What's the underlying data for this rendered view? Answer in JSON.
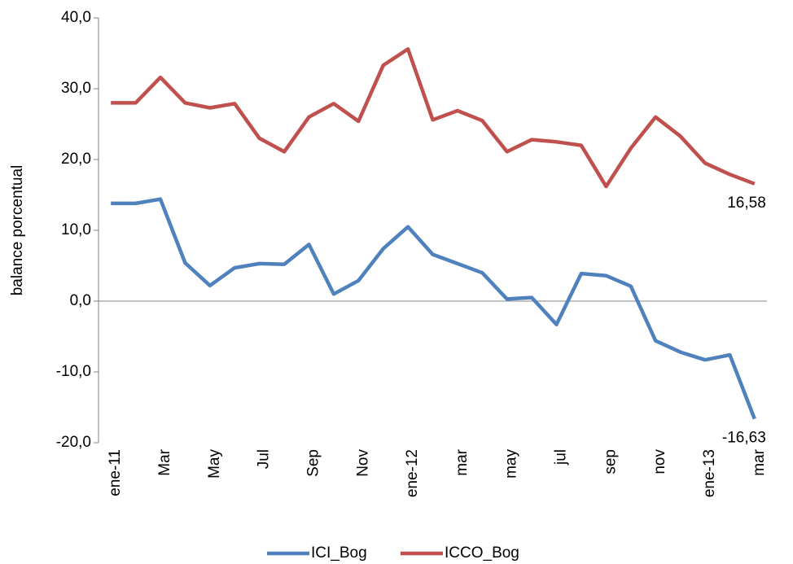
{
  "chart_data": {
    "type": "line",
    "y_label": "balance porcentual",
    "categories": [
      "ene-11",
      null,
      "Mar",
      null,
      "May",
      null,
      "Jul",
      null,
      "Sep",
      null,
      "Nov",
      null,
      "ene-12",
      null,
      "mar",
      null,
      "may",
      null,
      "jul",
      null,
      "sep",
      null,
      "nov",
      null,
      "ene-13",
      null,
      "mar"
    ],
    "series": [
      {
        "name": "ICI_Bog",
        "color": "#4f81bd",
        "values": [
          13.8,
          13.8,
          14.4,
          5.4,
          2.2,
          4.7,
          5.3,
          5.2,
          8.0,
          1.0,
          2.9,
          7.4,
          10.5,
          6.6,
          5.3,
          4.0,
          0.3,
          0.5,
          -3.3,
          3.9,
          3.6,
          2.1,
          -5.6,
          -7.2,
          -8.3,
          -7.6,
          -16.63
        ],
        "value_labels": [
          null,
          null,
          null,
          null,
          null,
          null,
          null,
          null,
          null,
          null,
          null,
          null,
          null,
          null,
          null,
          null,
          null,
          null,
          null,
          null,
          null,
          null,
          null,
          null,
          null,
          null,
          "-16,63"
        ]
      },
      {
        "name": "ICCO_Bog",
        "color": "#c0504d",
        "values": [
          28.0,
          28.0,
          31.6,
          28.0,
          27.3,
          27.9,
          23.0,
          21.1,
          26.0,
          27.9,
          25.4,
          33.3,
          35.6,
          25.6,
          26.9,
          25.5,
          21.1,
          22.8,
          22.5,
          22.0,
          16.2,
          21.6,
          26.0,
          23.3,
          19.5,
          17.9,
          16.58
        ],
        "value_labels": [
          null,
          null,
          null,
          null,
          null,
          null,
          null,
          null,
          null,
          null,
          null,
          null,
          null,
          null,
          null,
          null,
          null,
          null,
          null,
          null,
          null,
          null,
          null,
          null,
          null,
          null,
          "16,58"
        ]
      }
    ],
    "ylim": [
      -20,
      40
    ],
    "yticks": [
      {
        "value": -20,
        "label": "-20,0"
      },
      {
        "value": -10,
        "label": "-10,0"
      },
      {
        "value": 0,
        "label": "0,0"
      },
      {
        "value": 10,
        "label": "10,0"
      },
      {
        "value": 20,
        "label": "20,0"
      },
      {
        "value": 30,
        "label": "30,0"
      },
      {
        "value": 40,
        "label": "40,0"
      }
    ],
    "legend": "bottom"
  }
}
